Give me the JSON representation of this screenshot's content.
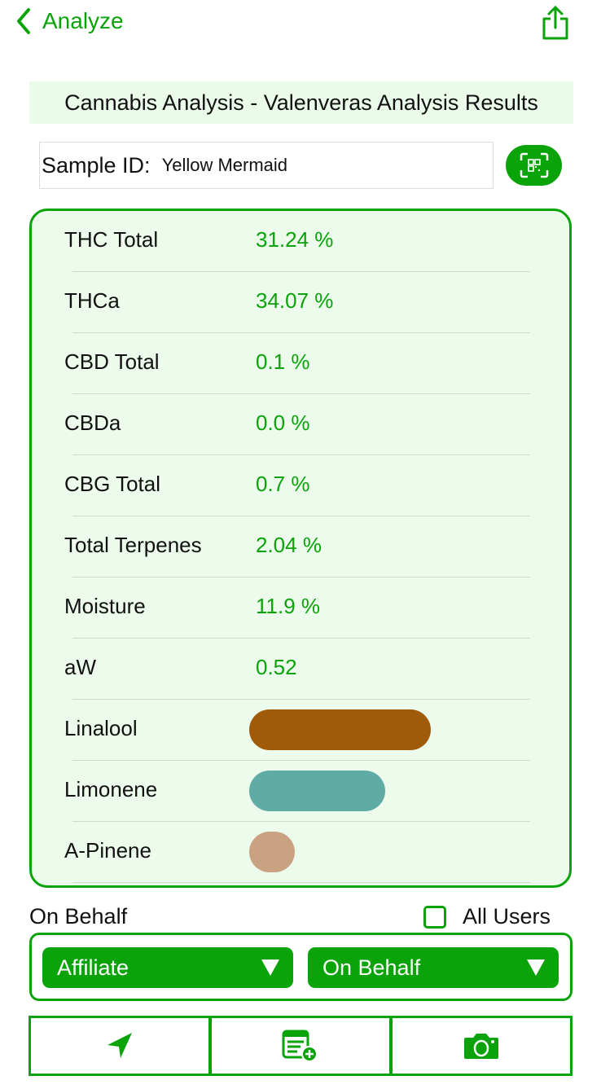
{
  "nav": {
    "back_label": "Analyze"
  },
  "title": "Cannabis Analysis - Valenveras Analysis Results",
  "sample": {
    "label": "Sample ID:",
    "value": "Yellow Mermaid"
  },
  "results": [
    {
      "name": "THC Total",
      "value": "31.24 %"
    },
    {
      "name": "THCa",
      "value": "34.07 %"
    },
    {
      "name": "CBD Total",
      "value": "0.1 %"
    },
    {
      "name": "CBDa",
      "value": "0.0 %"
    },
    {
      "name": "CBG Total",
      "value": "0.7 %"
    },
    {
      "name": "Total Terpenes",
      "value": "2.04 %"
    },
    {
      "name": "Moisture",
      "value": "11.9 %"
    },
    {
      "name": "aW",
      "value": "0.52"
    }
  ],
  "terpenes": [
    {
      "name": "Linalool",
      "level": 1.0,
      "color": "#A05A08"
    },
    {
      "name": "Limonene",
      "level": 0.75,
      "color": "#5FABA6"
    },
    {
      "name": "A-Pinene",
      "level": 0.25,
      "color": "#C9A282"
    }
  ],
  "on_behalf_label": "On Behalf",
  "all_users_label": "All Users",
  "all_users_checked": false,
  "selects": {
    "affiliate": "Affiliate",
    "on_behalf": "On Behalf"
  },
  "accent": "#0AA30A"
}
